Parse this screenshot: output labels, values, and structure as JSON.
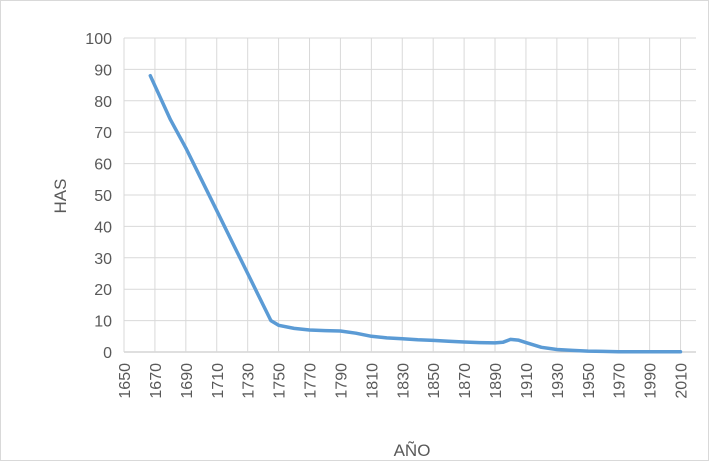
{
  "chart_data": {
    "type": "line",
    "title": "",
    "xlabel": "AÑO",
    "ylabel": "HAS",
    "xlim": [
      1650,
      2020
    ],
    "ylim": [
      0,
      100
    ],
    "x_ticks": [
      1650,
      1670,
      1690,
      1710,
      1730,
      1750,
      1770,
      1790,
      1810,
      1830,
      1850,
      1870,
      1890,
      1910,
      1930,
      1950,
      1970,
      1990,
      2010
    ],
    "y_ticks": [
      0,
      10,
      20,
      30,
      40,
      50,
      60,
      70,
      80,
      90,
      100
    ],
    "x_tick_labels": [
      "1650",
      "1670",
      "1690",
      "1710",
      "1730",
      "1750",
      "1770",
      "1790",
      "1810",
      "1830",
      "1850",
      "1870",
      "1890",
      "1910",
      "1930",
      "1950",
      "1970",
      "1990",
      "2010"
    ],
    "y_tick_labels": [
      "0",
      "10",
      "20",
      "30",
      "40",
      "50",
      "60",
      "70",
      "80",
      "90",
      "100"
    ],
    "grid": true,
    "legend": "none",
    "series": [
      {
        "color": "#5b9bd5",
        "x": [
          1667,
          1680,
          1690,
          1700,
          1710,
          1720,
          1730,
          1740,
          1745,
          1750,
          1760,
          1770,
          1780,
          1790,
          1800,
          1810,
          1820,
          1830,
          1840,
          1850,
          1860,
          1870,
          1880,
          1890,
          1895,
          1900,
          1905,
          1910,
          1920,
          1930,
          1940,
          1950,
          1960,
          1970,
          1980,
          1990,
          2000,
          2010
        ],
        "y": [
          88,
          74,
          65,
          55,
          45,
          35,
          25,
          15,
          10,
          8.5,
          7.5,
          7,
          6.8,
          6.7,
          6,
          5,
          4.5,
          4.2,
          3.9,
          3.7,
          3.4,
          3.2,
          3.0,
          2.9,
          3.1,
          4.0,
          3.8,
          3.0,
          1.5,
          0.8,
          0.5,
          0.3,
          0.2,
          0.1,
          0.1,
          0.1,
          0.1,
          0.1
        ]
      }
    ]
  }
}
